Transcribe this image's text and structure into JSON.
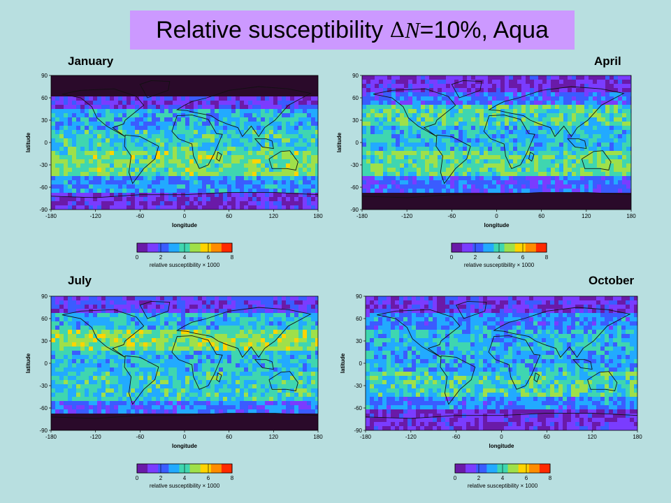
{
  "title": {
    "prefix": "Relative susceptibility ",
    "delta": "Δ",
    "var": "N",
    "suffix": "=10%, Aqua"
  },
  "axes": {
    "x_label": "longitude",
    "y_label": "latitude",
    "x_ticks": [
      "-180",
      "-120",
      "-60",
      "0",
      "60",
      "120",
      "180"
    ],
    "y_ticks": [
      "90",
      "60",
      "30",
      "0",
      "-30",
      "-60",
      "-90"
    ]
  },
  "colorbar": {
    "label": "relative susceptibility × 1000",
    "ticks": [
      "0",
      "2",
      "4",
      "6",
      "8"
    ],
    "range": [
      0,
      8
    ],
    "colors": [
      "#6a1aa8",
      "#7a3cff",
      "#3a5cff",
      "#22aaff",
      "#3fd6b0",
      "#9fe04a",
      "#ffd400",
      "#ff8c00",
      "#ff2a00"
    ]
  },
  "panels": [
    {
      "month": "January"
    },
    {
      "month": "April"
    },
    {
      "month": "July"
    },
    {
      "month": "October"
    }
  ]
}
